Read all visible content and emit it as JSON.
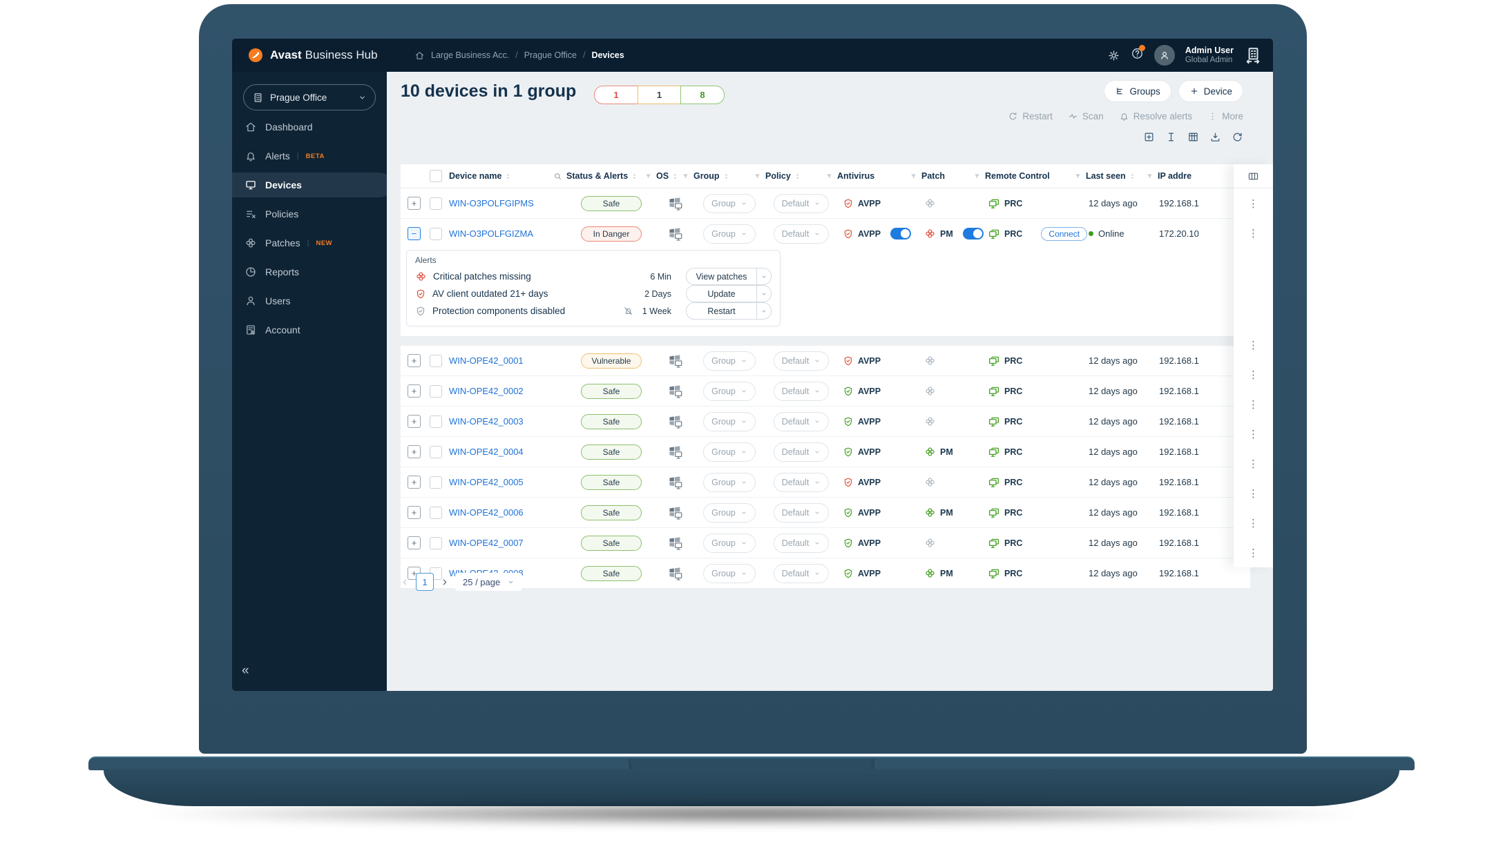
{
  "colors": {
    "accent_orange": "#F57C20",
    "link_blue": "#1F72D8",
    "toggle_blue": "#1E7BE0",
    "safe_green": "#47A023",
    "danger_red": "#E2533F",
    "warning_amber": "#EFB052",
    "navy": "#0A1E30"
  },
  "topbar": {
    "brand_bold": "Avast",
    "brand_light": "Business Hub",
    "breadcrumb": [
      "Large Business Acc.",
      "Prague Office",
      "Devices"
    ],
    "user_name": "Admin User",
    "user_role": "Global Admin"
  },
  "sidebar": {
    "org": "Prague Office",
    "items": [
      {
        "label": "Dashboard",
        "icon": "home"
      },
      {
        "label": "Alerts",
        "icon": "bell",
        "badge": "BETA"
      },
      {
        "label": "Devices",
        "icon": "monitor",
        "active": true
      },
      {
        "label": "Policies",
        "icon": "policy"
      },
      {
        "label": "Patches",
        "icon": "patch",
        "badge": "NEW"
      },
      {
        "label": "Reports",
        "icon": "pie"
      },
      {
        "label": "Users",
        "icon": "user"
      },
      {
        "label": "Account",
        "icon": "account"
      }
    ],
    "collapse": "«"
  },
  "header": {
    "title": "10 devices in 1 group",
    "counts": [
      {
        "value": "1",
        "type": "danger"
      },
      {
        "value": "1",
        "type": "warning"
      },
      {
        "value": "8",
        "type": "safe"
      }
    ],
    "buttons": [
      {
        "label": "Groups",
        "icon": "hierarchy"
      },
      {
        "label": "Device",
        "icon": "plus"
      }
    ],
    "actions": [
      {
        "label": "Restart",
        "icon": "restart"
      },
      {
        "label": "Scan",
        "icon": "scan"
      },
      {
        "label": "Resolve alerts",
        "icon": "bell"
      },
      {
        "label": "More",
        "icon": "dotsv"
      }
    ],
    "utility_icons": [
      "add-square",
      "text-cursor",
      "table-grid",
      "download",
      "refresh"
    ]
  },
  "table": {
    "columns": [
      {
        "label": "Device name",
        "sort": true,
        "search": true
      },
      {
        "label": "Status & Alerts",
        "sort": true,
        "filter": true
      },
      {
        "label": "OS",
        "sort": true,
        "filter": true
      },
      {
        "label": "Group",
        "sort": true,
        "filter": true
      },
      {
        "label": "Policy",
        "sort": true,
        "filter": true
      },
      {
        "label": "Antivirus",
        "filter": true
      },
      {
        "label": "Patch",
        "filter": true
      },
      {
        "label": "Remote Control",
        "filter": true
      },
      {
        "label": "Last seen",
        "sort": true,
        "filter": true
      },
      {
        "label": "IP addre"
      }
    ],
    "group_label": "Group",
    "policy_label": "Default",
    "av_label": "AVPP",
    "pm_label": "PM",
    "rc_label": "PRC",
    "connect_label": "Connect"
  },
  "devices": [
    {
      "name": "WIN-O3POLFGIPMS",
      "status": "Safe",
      "status_type": "safe",
      "expand": "plus",
      "av": "red",
      "av_toggle": false,
      "patch": "gray",
      "pm": false,
      "pm_toggle": false,
      "rc_toggle": false,
      "connect": false,
      "last_seen": "12 days ago",
      "online": false,
      "ip": "192.168.1"
    },
    {
      "name": "WIN-O3POLFGIZMA",
      "status": "In Danger",
      "status_type": "danger",
      "expand": "minus",
      "av": "red",
      "av_toggle": true,
      "patch": "red",
      "pm": true,
      "pm_toggle": true,
      "rc_toggle": true,
      "connect": true,
      "last_seen": "Online",
      "online": true,
      "ip": "172.20.10",
      "expanded": true
    },
    {
      "name": "WIN-OPE42_0001",
      "status": "Vulnerable",
      "status_type": "warning",
      "expand": "plus",
      "av": "red",
      "patch": "gray",
      "last_seen": "12 days ago",
      "ip": "192.168.1"
    },
    {
      "name": "WIN-OPE42_0002",
      "status": "Safe",
      "status_type": "safe",
      "expand": "plus",
      "av": "green",
      "patch": "gray",
      "last_seen": "12 days ago",
      "ip": "192.168.1"
    },
    {
      "name": "WIN-OPE42_0003",
      "status": "Safe",
      "status_type": "safe",
      "expand": "plus",
      "av": "green",
      "patch": "gray",
      "last_seen": "12 days ago",
      "ip": "192.168.1"
    },
    {
      "name": "WIN-OPE42_0004",
      "status": "Safe",
      "status_type": "safe",
      "expand": "plus",
      "av": "green",
      "patch": "green",
      "pm": true,
      "last_seen": "12 days ago",
      "ip": "192.168.1"
    },
    {
      "name": "WIN-OPE42_0005",
      "status": "Safe",
      "status_type": "safe",
      "expand": "plus",
      "av": "red",
      "patch": "gray",
      "last_seen": "12 days ago",
      "ip": "192.168.1"
    },
    {
      "name": "WIN-OPE42_0006",
      "status": "Safe",
      "status_type": "safe",
      "expand": "plus",
      "av": "green",
      "patch": "green",
      "pm": true,
      "last_seen": "12 days ago",
      "ip": "192.168.1"
    },
    {
      "name": "WIN-OPE42_0007",
      "status": "Safe",
      "status_type": "safe",
      "expand": "plus",
      "av": "green",
      "patch": "gray",
      "last_seen": "12 days ago",
      "ip": "192.168.1"
    },
    {
      "name": "WIN-OPE42_0008",
      "status": "Safe",
      "status_type": "safe",
      "expand": "plus",
      "av": "green",
      "patch": "green",
      "pm": true,
      "last_seen": "12 days ago",
      "ip": "192.168.1"
    }
  ],
  "alerts_panel": {
    "title": "Alerts",
    "rows": [
      {
        "icon": "patch-red",
        "text": "Critical patches missing",
        "age": "6 Min",
        "action": "View patches"
      },
      {
        "icon": "shield-red",
        "text": "AV client outdated 21+ days",
        "age": "2 Days",
        "action": "Update"
      },
      {
        "icon": "shield-gray",
        "text": "Protection components disabled",
        "muted": true,
        "age": "1 Week",
        "action": "Restart"
      }
    ]
  },
  "pagination": {
    "prev": "‹",
    "page": "1",
    "next": "›",
    "page_size": "25 / page"
  }
}
